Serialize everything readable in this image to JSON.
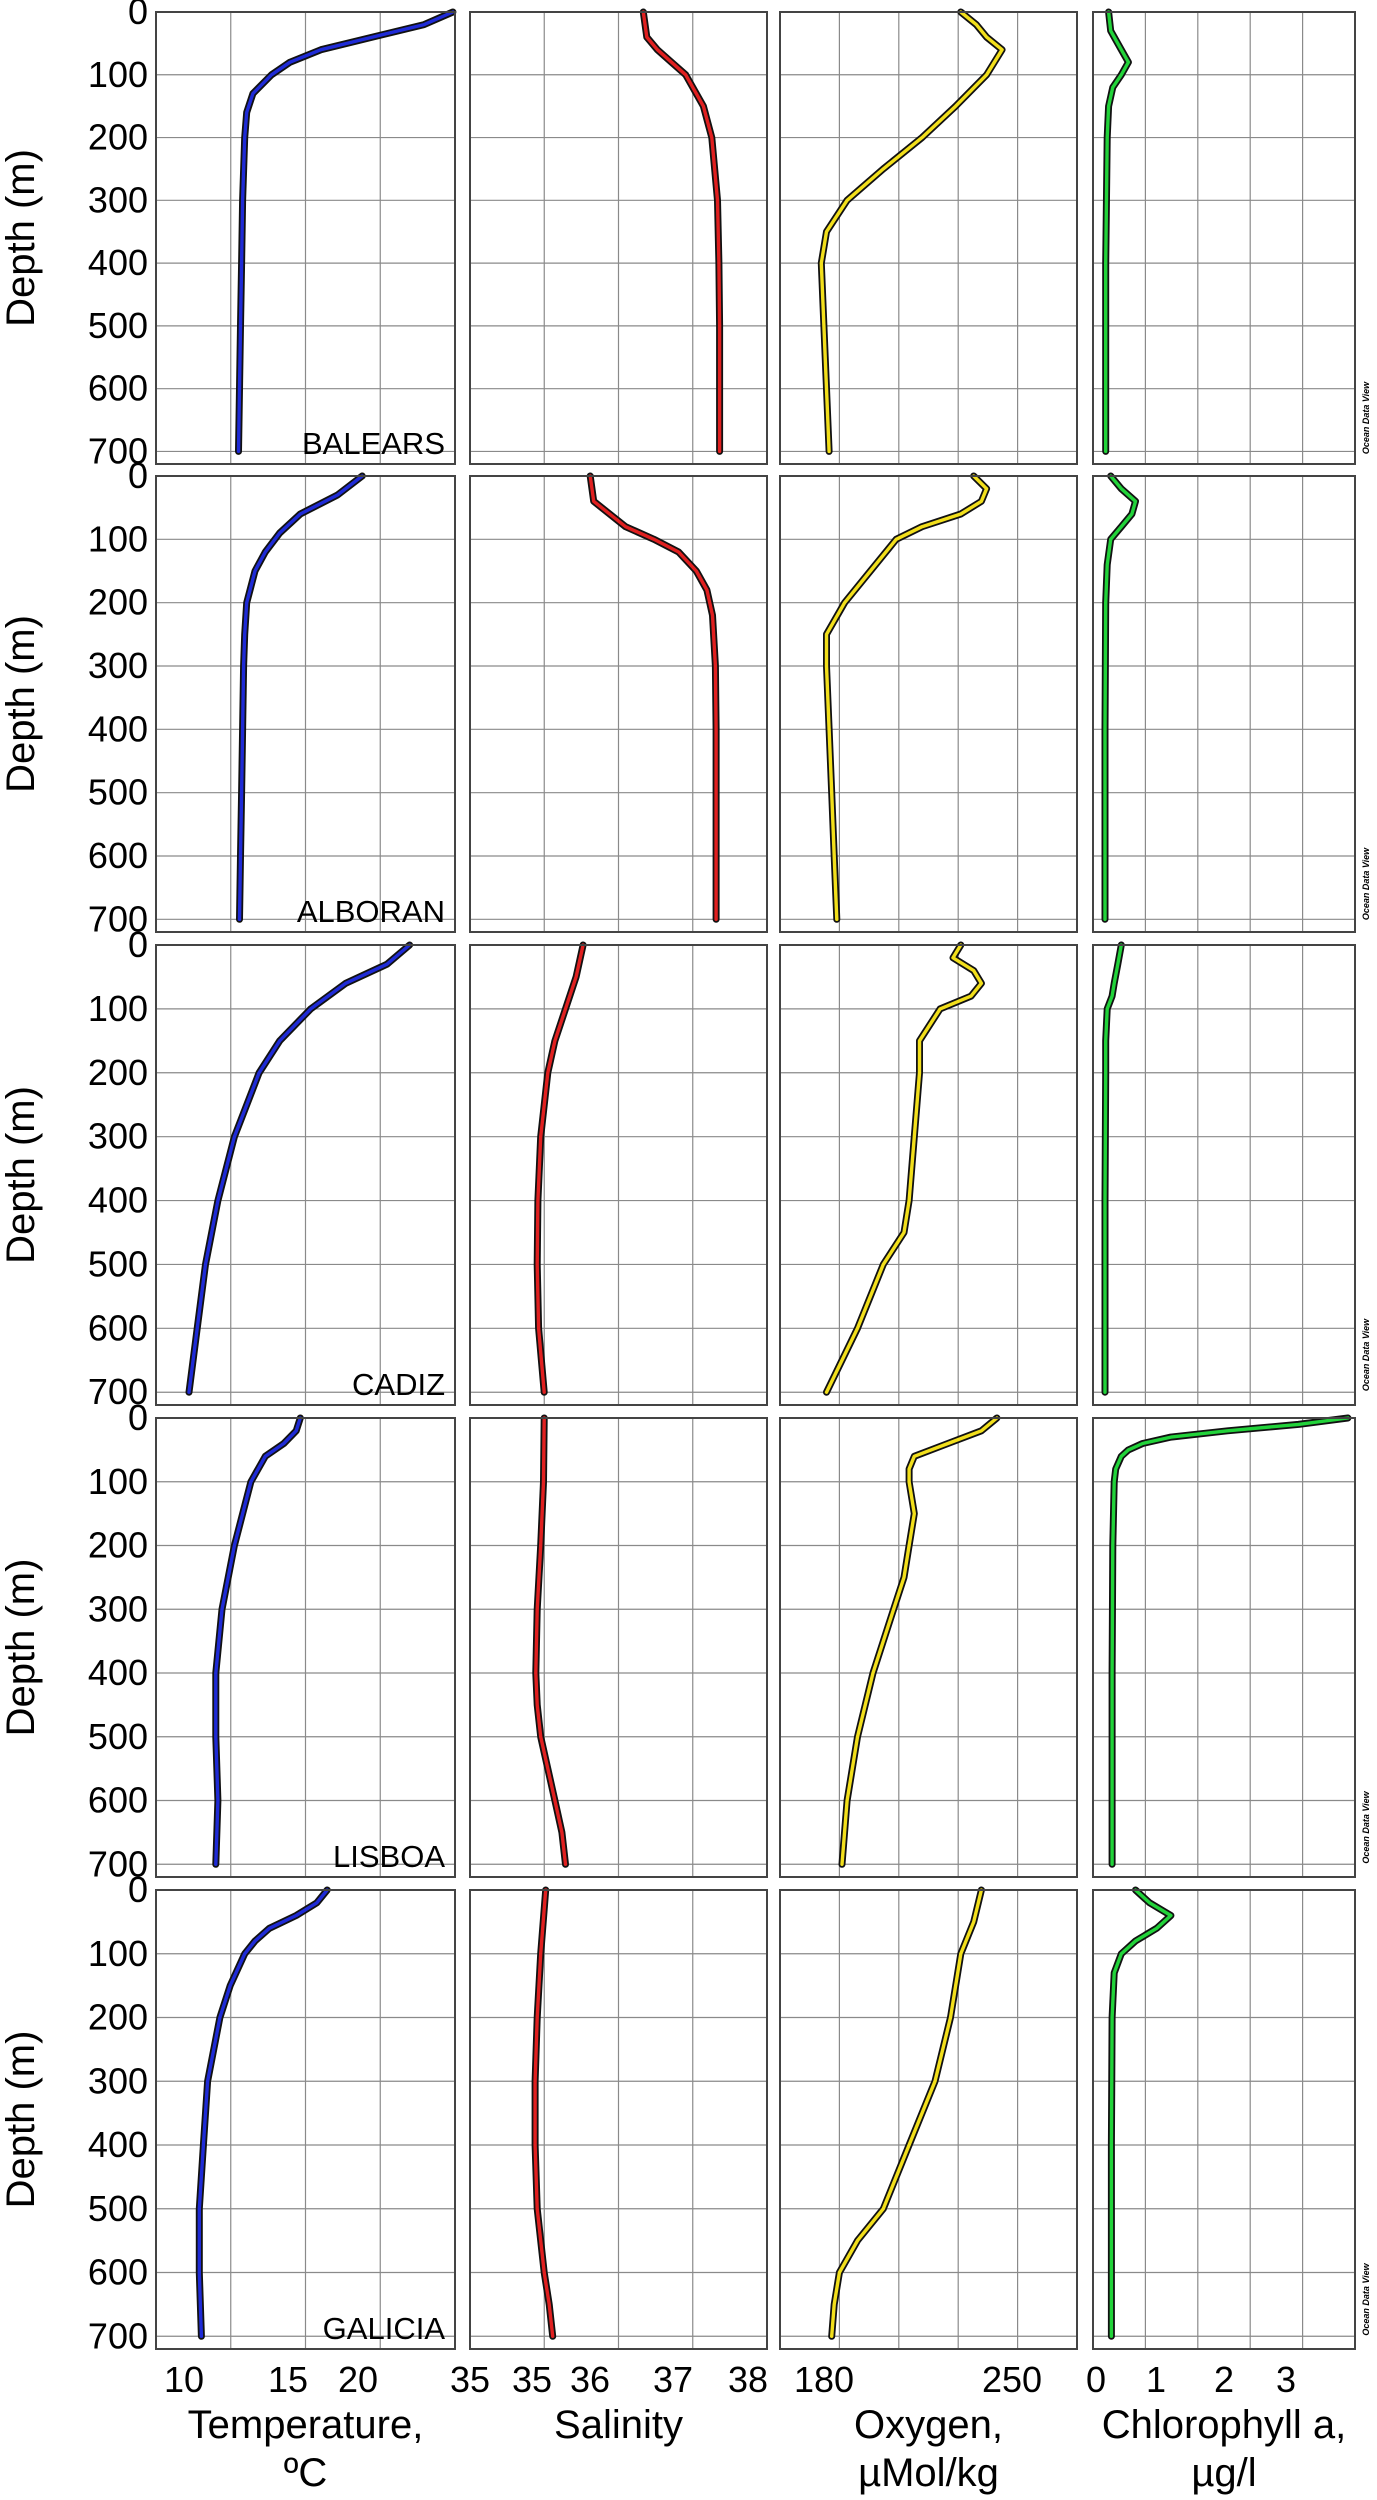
{
  "chart_data": {
    "type": "line",
    "grid": true,
    "y_axis": {
      "label": "Depth (m)",
      "ticks": [
        0,
        100,
        200,
        300,
        400,
        500,
        600,
        700
      ],
      "range": [
        0,
        720
      ],
      "inverted": true
    },
    "variables": [
      {
        "key": "temp",
        "label": "Temperature,",
        "label2": "ºC",
        "ticks": [
          "10",
          "15",
          "20",
          "35"
        ],
        "range": [
          9,
          23.5
        ],
        "color": "#1f2bd6"
      },
      {
        "key": "sal",
        "label": "Salinity",
        "label2": "",
        "ticks": [
          "35",
          "36",
          "37",
          "38"
        ],
        "range": [
          35,
          39.2
        ],
        "color": "#e02020"
      },
      {
        "key": "oxy",
        "label": "Oxygen,",
        "label2": "µMol/kg",
        "ticks": [
          "180",
          "250"
        ],
        "range": [
          160,
          275
        ],
        "color": "#f2df1c"
      },
      {
        "key": "chl",
        "label": "Chlorophyll a,",
        "label2": "µg/l",
        "ticks": [
          "0",
          "1",
          "2",
          "3"
        ],
        "range": [
          -0.1,
          3.6
        ],
        "color": "#22d33a"
      }
    ],
    "credit": "Ocean Data View",
    "stations": [
      {
        "name": "BALEARS",
        "temp": {
          "depth": [
            0,
            20,
            40,
            60,
            80,
            100,
            130,
            160,
            200,
            300,
            400,
            500,
            600,
            700
          ],
          "values": [
            23.4,
            22.0,
            19.5,
            17.0,
            15.5,
            14.6,
            13.7,
            13.4,
            13.3,
            13.2,
            13.15,
            13.1,
            13.05,
            13.0
          ]
        },
        "sal": {
          "depth": [
            0,
            40,
            60,
            80,
            100,
            150,
            200,
            300,
            400,
            500,
            600,
            700
          ],
          "values": [
            37.45,
            37.5,
            37.65,
            37.85,
            38.05,
            38.3,
            38.42,
            38.5,
            38.52,
            38.53,
            38.53,
            38.53
          ]
        },
        "oxy": {
          "depth": [
            0,
            20,
            40,
            60,
            80,
            100,
            150,
            200,
            250,
            300,
            350,
            400,
            500,
            600,
            700
          ],
          "values": [
            230,
            236,
            240,
            246,
            243,
            240,
            228,
            215,
            200,
            186,
            178,
            176,
            177,
            178,
            179
          ]
        },
        "chl": {
          "depth": [
            0,
            30,
            60,
            80,
            100,
            120,
            150,
            200,
            400,
            700
          ],
          "values": [
            0.12,
            0.15,
            0.3,
            0.4,
            0.3,
            0.18,
            0.12,
            0.1,
            0.08,
            0.08
          ]
        }
      },
      {
        "name": "ALBORAN",
        "temp": {
          "depth": [
            0,
            30,
            60,
            90,
            120,
            150,
            200,
            250,
            300,
            400,
            500,
            600,
            700
          ],
          "values": [
            19.0,
            17.8,
            16.0,
            15.0,
            14.3,
            13.8,
            13.4,
            13.3,
            13.25,
            13.2,
            13.15,
            13.1,
            13.05
          ]
        },
        "sal": {
          "depth": [
            0,
            40,
            80,
            100,
            120,
            150,
            180,
            220,
            300,
            400,
            500,
            600,
            700
          ],
          "values": [
            36.7,
            36.75,
            37.2,
            37.6,
            37.95,
            38.2,
            38.35,
            38.43,
            38.47,
            38.48,
            38.48,
            38.48,
            38.48
          ]
        },
        "oxy": {
          "depth": [
            0,
            20,
            40,
            60,
            80,
            100,
            150,
            200,
            250,
            300,
            400,
            500,
            600,
            700
          ],
          "values": [
            235,
            240,
            238,
            230,
            215,
            205,
            195,
            185,
            178,
            178,
            179,
            180,
            181,
            182
          ]
        },
        "chl": {
          "depth": [
            0,
            20,
            40,
            60,
            80,
            100,
            140,
            200,
            400,
            700
          ],
          "values": [
            0.15,
            0.3,
            0.5,
            0.45,
            0.3,
            0.15,
            0.1,
            0.08,
            0.07,
            0.07
          ]
        }
      },
      {
        "name": "CADIZ",
        "temp": {
          "depth": [
            0,
            30,
            60,
            100,
            150,
            200,
            300,
            400,
            500,
            600,
            700
          ],
          "values": [
            21.3,
            20.2,
            18.2,
            16.5,
            15.0,
            14.0,
            12.8,
            12.0,
            11.4,
            11.0,
            10.6
          ]
        },
        "sal": {
          "depth": [
            0,
            50,
            100,
            150,
            200,
            300,
            400,
            500,
            600,
            700
          ],
          "values": [
            36.6,
            36.5,
            36.35,
            36.2,
            36.1,
            36.0,
            35.96,
            35.95,
            35.97,
            36.05
          ]
        },
        "oxy": {
          "depth": [
            0,
            20,
            40,
            60,
            80,
            100,
            150,
            200,
            300,
            400,
            450,
            500,
            600,
            700
          ],
          "values": [
            230,
            227,
            235,
            238,
            234,
            222,
            214,
            214,
            212,
            210,
            208,
            200,
            190,
            178
          ]
        },
        "chl": {
          "depth": [
            0,
            30,
            60,
            80,
            100,
            150,
            200,
            400,
            700
          ],
          "values": [
            0.3,
            0.25,
            0.2,
            0.17,
            0.1,
            0.08,
            0.08,
            0.07,
            0.07
          ]
        }
      },
      {
        "name": "LISBOA",
        "temp": {
          "depth": [
            0,
            20,
            40,
            60,
            100,
            200,
            300,
            400,
            500,
            600,
            700
          ],
          "values": [
            16.0,
            15.8,
            15.2,
            14.3,
            13.6,
            12.8,
            12.2,
            11.9,
            11.9,
            12.0,
            11.9
          ]
        },
        "sal": {
          "depth": [
            0,
            100,
            200,
            300,
            400,
            450,
            500,
            550,
            600,
            650,
            700
          ],
          "values": [
            36.05,
            36.04,
            36.0,
            35.95,
            35.93,
            35.95,
            36.0,
            36.1,
            36.2,
            36.3,
            36.35
          ]
        },
        "oxy": {
          "depth": [
            0,
            20,
            40,
            60,
            80,
            100,
            150,
            200,
            250,
            300,
            400,
            500,
            600,
            700
          ],
          "values": [
            244,
            238,
            225,
            212,
            210,
            210,
            212,
            210,
            208,
            204,
            196,
            190,
            186,
            184
          ]
        },
        "chl": {
          "depth": [
            0,
            10,
            20,
            30,
            40,
            50,
            60,
            80,
            100,
            200,
            400,
            700
          ],
          "values": [
            3.5,
            2.8,
            1.8,
            1.0,
            0.6,
            0.4,
            0.3,
            0.22,
            0.2,
            0.18,
            0.17,
            0.17
          ]
        }
      },
      {
        "name": "GALICIA",
        "temp": {
          "depth": [
            0,
            20,
            40,
            60,
            80,
            100,
            150,
            200,
            300,
            400,
            500,
            600,
            700
          ],
          "values": [
            17.3,
            16.8,
            15.8,
            14.5,
            13.8,
            13.3,
            12.6,
            12.1,
            11.5,
            11.3,
            11.1,
            11.1,
            11.2
          ]
        },
        "sal": {
          "depth": [
            0,
            100,
            200,
            300,
            400,
            500,
            600,
            650,
            700
          ],
          "values": [
            36.07,
            36.0,
            35.95,
            35.92,
            35.92,
            35.95,
            36.05,
            36.12,
            36.17
          ]
        },
        "oxy": {
          "depth": [
            0,
            50,
            100,
            200,
            300,
            400,
            500,
            550,
            600,
            650,
            700
          ],
          "values": [
            238,
            235,
            230,
            226,
            220,
            210,
            200,
            190,
            183,
            181,
            180
          ]
        },
        "chl": {
          "depth": [
            0,
            20,
            40,
            60,
            80,
            100,
            130,
            200,
            400,
            700
          ],
          "values": [
            0.5,
            0.7,
            1.0,
            0.8,
            0.5,
            0.3,
            0.2,
            0.17,
            0.16,
            0.16
          ]
        }
      }
    ]
  }
}
